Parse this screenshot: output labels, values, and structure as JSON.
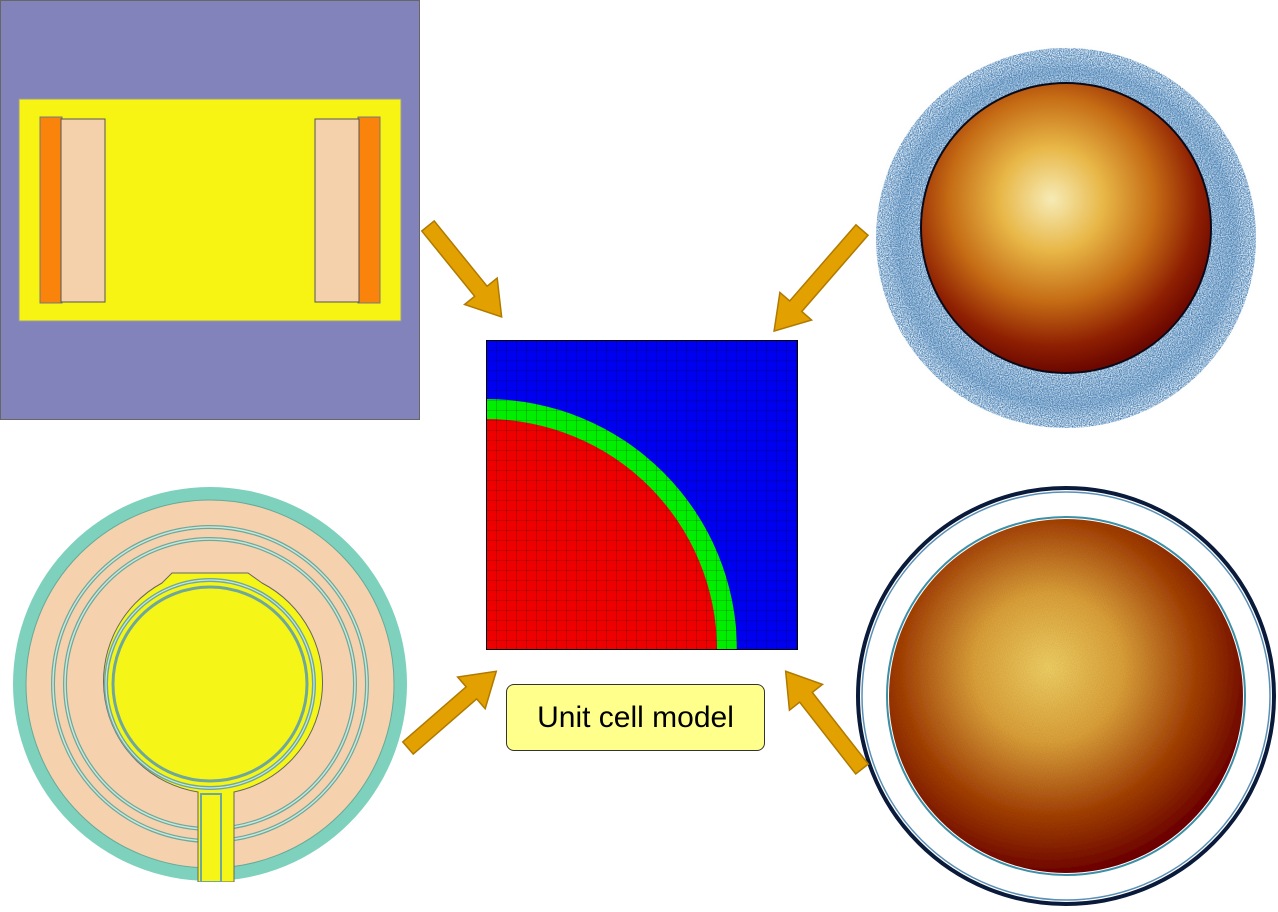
{
  "label": {
    "text": "Unit cell model"
  },
  "colors": {
    "tl_background": "#8183ba",
    "tl_yellow": "#f7f414",
    "tl_orange": "#f9830b",
    "tl_peach": "#f5d1ab",
    "cell_blue": "#0000f0",
    "cell_green": "#00ee00",
    "cell_red": "#ee0000",
    "bl_teal": "#7dd1bd",
    "bl_peach": "#f5d2ad",
    "bl_yellow": "#f5f617",
    "arrow_fill": "#e2a001",
    "arrow_stroke": "#b07a00",
    "label_fill": "#ffff8c"
  },
  "icons": {
    "top_left": "fuel-rod-section-icon",
    "top_right": "noisy-particle-ring-icon",
    "bottom_left": "concentric-ring-section-icon",
    "bottom_right": "smooth-particle-ring-icon"
  }
}
